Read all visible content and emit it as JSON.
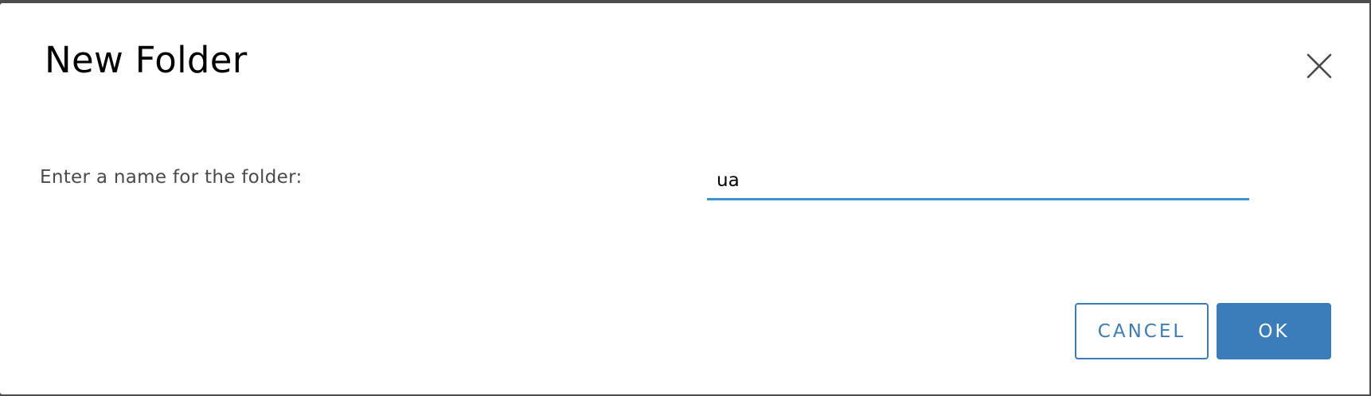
{
  "dialog": {
    "title": "New Folder",
    "close_icon": "close-icon",
    "field_label": "Enter a name for the folder:",
    "name_value": "ua",
    "name_placeholder": "",
    "cancel_label": "CANCEL",
    "ok_label": "OK"
  },
  "colors": {
    "accent": "#3b7cba",
    "input_underline": "#3d93d0",
    "backdrop": "#4d4d4d"
  }
}
